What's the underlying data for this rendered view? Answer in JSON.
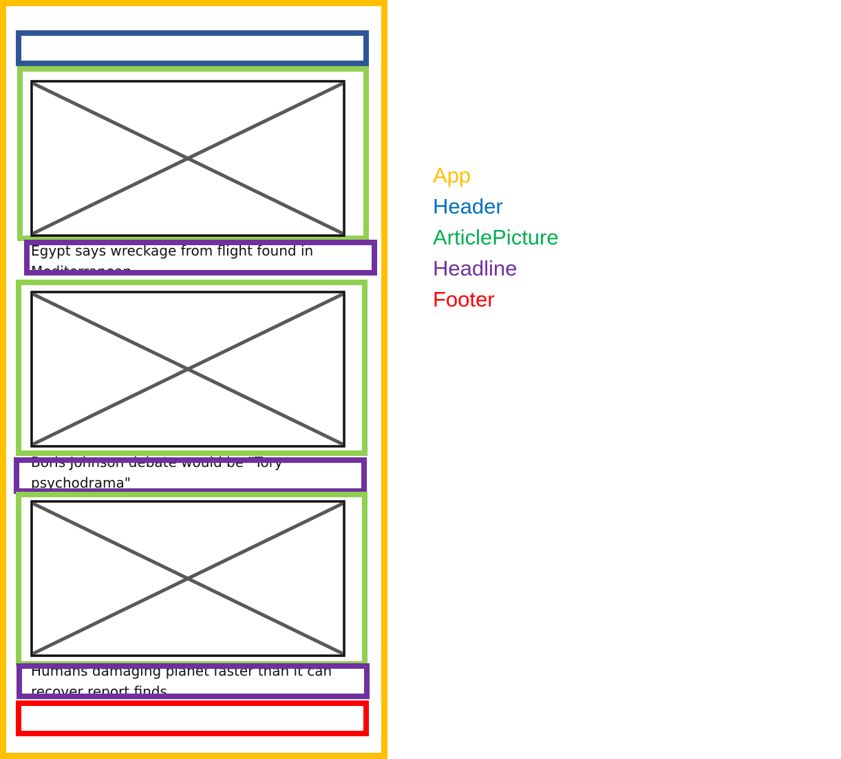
{
  "headlines": [
    "Egypt says wreckage from flight found in Mediterranean",
    "Boris Johnson debate would be \"Tory psychodrama\"",
    "Humans damaging planet faster than it can recover report finds"
  ],
  "legend": {
    "app": "App",
    "header": "Header",
    "article_picture": "ArticlePicture",
    "headline": "Headline",
    "footer": "Footer"
  },
  "colors": {
    "app": "#FFC000",
    "header": "#2F5597",
    "article_picture": "#92D050",
    "headline": "#7030A0",
    "footer": "#FF0000",
    "legend_header": "#0070C0",
    "legend_article_picture": "#00B050",
    "legend_headline": "#7030A0",
    "legend_footer": "#FF0000"
  },
  "icons": {
    "picture_placeholder": "image-placeholder-icon"
  }
}
